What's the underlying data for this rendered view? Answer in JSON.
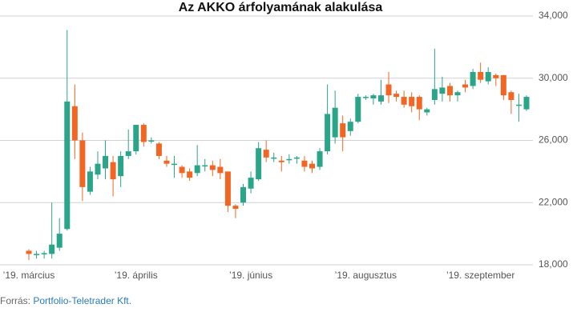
{
  "chart_data": {
    "type": "candlestick",
    "title": "Az AKKO árfolyamának alakulása",
    "categories": [
      "’19. március",
      null,
      null,
      null,
      null,
      null,
      null,
      null,
      null,
      null,
      null,
      null,
      null,
      null,
      "’19. április",
      null,
      null,
      null,
      null,
      null,
      null,
      null,
      null,
      null,
      null,
      null,
      null,
      null,
      null,
      "’19. június",
      null,
      null,
      null,
      null,
      null,
      null,
      null,
      null,
      null,
      null,
      null,
      null,
      null,
      null,
      "’19. augusztus",
      null,
      null,
      null,
      null,
      null,
      null,
      null,
      null,
      null,
      null,
      null,
      null,
      null,
      null,
      "’19. szeptember",
      null,
      null,
      null,
      null,
      null,
      null
    ],
    "open": [
      18900,
      18700,
      18750,
      18700,
      19100,
      20300,
      28200,
      26000,
      22700,
      23800,
      24200,
      24600,
      23700,
      25000,
      25300,
      27000,
      26000,
      25800,
      24700,
      24500,
      24300,
      24000,
      23900,
      24400,
      24400,
      24300,
      24000,
      21800,
      22000,
      22900,
      23500,
      25400,
      24900,
      24700,
      24800,
      24900,
      24700,
      24500,
      24300,
      25300,
      26200,
      27100,
      26600,
      27200,
      28800,
      28700,
      28500,
      29600,
      29000,
      28800,
      28800,
      28800,
      27800,
      28600,
      29000,
      29500,
      28900,
      29600,
      29500,
      30400,
      29800,
      30200,
      30200,
      29100,
      28300,
      28000
    ],
    "high": [
      19000,
      18900,
      18900,
      22000,
      21000,
      33100,
      29600,
      26500,
      24300,
      25300,
      26000,
      25000,
      25300,
      26700,
      27000,
      27100,
      26200,
      25900,
      25000,
      25000,
      24400,
      24200,
      25700,
      24800,
      24700,
      24800,
      24000,
      21900,
      23200,
      24000,
      25900,
      26000,
      25200,
      25000,
      25100,
      25000,
      25000,
      24700,
      25500,
      29600,
      29200,
      27600,
      27400,
      29000,
      28900,
      29000,
      29900,
      30400,
      29200,
      29200,
      29100,
      28900,
      28100,
      31900,
      30100,
      29700,
      29200,
      29900,
      30600,
      31000,
      30700,
      30300,
      30200,
      29200,
      29000,
      28900
    ],
    "low": [
      18300,
      18400,
      18400,
      18400,
      18900,
      20200,
      24800,
      22100,
      22500,
      23500,
      23500,
      22400,
      23000,
      24800,
      25100,
      25600,
      25800,
      24800,
      24300,
      23600,
      23600,
      23400,
      23700,
      24000,
      23700,
      23500,
      21400,
      21000,
      21800,
      22600,
      23400,
      24600,
      24600,
      24000,
      24500,
      24500,
      24000,
      23900,
      24100,
      25100,
      25800,
      25300,
      26300,
      27100,
      28600,
      28300,
      28300,
      28400,
      28500,
      28100,
      27800,
      27300,
      27600,
      28300,
      28500,
      28500,
      28500,
      29100,
      29300,
      29700,
      29600,
      29500,
      28600,
      27700,
      27200,
      27900
    ],
    "close": [
      18700,
      18700,
      18750,
      19300,
      20000,
      28500,
      26000,
      23000,
      24000,
      24500,
      25000,
      23500,
      25000,
      25300,
      27000,
      25900,
      26000,
      25000,
      24500,
      24500,
      23900,
      23600,
      24400,
      24400,
      24100,
      23900,
      21800,
      21600,
      23000,
      23600,
      25500,
      24900,
      24900,
      24600,
      24800,
      24900,
      24300,
      24200,
      25300,
      27700,
      28100,
      26200,
      27200,
      28800,
      28800,
      28900,
      28900,
      28900,
      28800,
      28300,
      28200,
      28000,
      28000,
      29300,
      29400,
      28900,
      29100,
      29400,
      30400,
      29900,
      30400,
      30000,
      28900,
      28600,
      28300,
      28800
    ],
    "up_color": "#2aa58a",
    "down_color": "#f26522",
    "ylim": [
      18000,
      34000
    ],
    "yticks": [
      {
        "value": 18000,
        "label": "18,000"
      },
      {
        "value": 22000,
        "label": "22,000"
      },
      {
        "value": 26000,
        "label": "26,000"
      },
      {
        "value": 30000,
        "label": "30,000"
      },
      {
        "value": 34000,
        "label": "34,000"
      }
    ],
    "grid": true,
    "source_label": "Forrás:",
    "source": "Portfolio-Teletrader Kft."
  }
}
